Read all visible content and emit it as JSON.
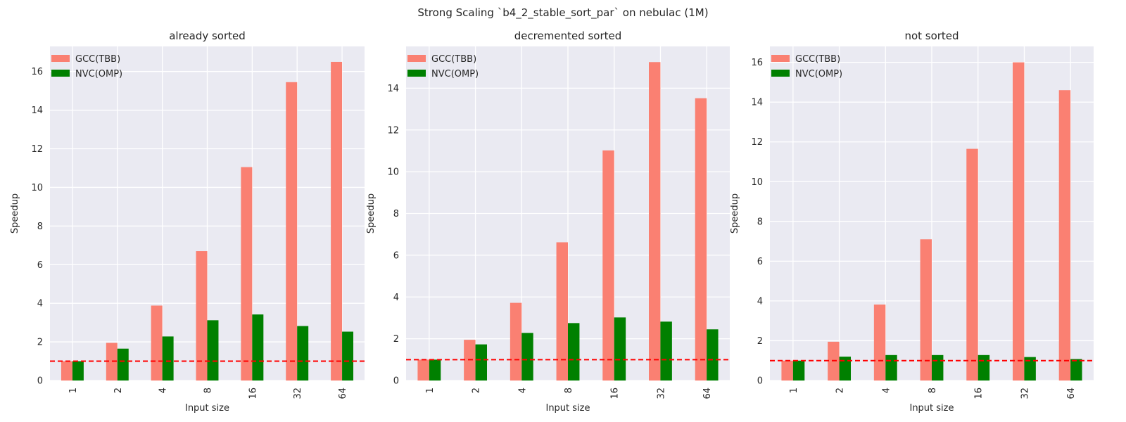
{
  "figure": {
    "suptitle": "Strong Scaling `b4_2_stable_sort_par` on nebulac (1M)"
  },
  "colors": {
    "background": "#eaeaf2",
    "grid": "#ffffff",
    "gcc": "#fa8072",
    "nvc": "#008000",
    "baseline": "#ff0000",
    "text": "#262626"
  },
  "chart_data": [
    {
      "type": "bar",
      "title": "already sorted",
      "xlabel": "Input size",
      "ylabel": "Speedup",
      "categories": [
        "1",
        "2",
        "4",
        "8",
        "16",
        "32",
        "64"
      ],
      "series": [
        {
          "name": "GCC(TBB)",
          "values": [
            1.0,
            1.95,
            3.88,
            6.7,
            11.05,
            15.45,
            16.5
          ]
        },
        {
          "name": "NVC(OMP)",
          "values": [
            1.0,
            1.65,
            2.28,
            3.12,
            3.42,
            2.82,
            2.53
          ]
        }
      ],
      "ylim": [
        0,
        17.3
      ],
      "yticks": [
        0,
        2,
        4,
        6,
        8,
        10,
        12,
        14,
        16
      ],
      "baseline": 1.0,
      "legend": "top-left",
      "grid": true
    },
    {
      "type": "bar",
      "title": "decremented sorted",
      "xlabel": "Input size",
      "ylabel": "Speedup",
      "categories": [
        "1",
        "2",
        "4",
        "8",
        "16",
        "32",
        "64"
      ],
      "series": [
        {
          "name": "GCC(TBB)",
          "values": [
            1.0,
            1.95,
            3.72,
            6.62,
            11.02,
            15.25,
            13.52
          ]
        },
        {
          "name": "NVC(OMP)",
          "values": [
            1.0,
            1.73,
            2.28,
            2.75,
            3.02,
            2.82,
            2.45
          ]
        }
      ],
      "ylim": [
        0,
        16.0
      ],
      "yticks": [
        0,
        2,
        4,
        6,
        8,
        10,
        12,
        14
      ],
      "baseline": 1.0,
      "legend": "top-left",
      "grid": true
    },
    {
      "type": "bar",
      "title": "not sorted",
      "xlabel": "Input size",
      "ylabel": "Speedup",
      "categories": [
        "1",
        "2",
        "4",
        "8",
        "16",
        "32",
        "64"
      ],
      "series": [
        {
          "name": "GCC(TBB)",
          "values": [
            1.0,
            1.95,
            3.82,
            7.1,
            11.65,
            16.0,
            14.6
          ]
        },
        {
          "name": "NVC(OMP)",
          "values": [
            1.0,
            1.2,
            1.28,
            1.28,
            1.28,
            1.18,
            1.08
          ]
        }
      ],
      "ylim": [
        0,
        16.8
      ],
      "yticks": [
        0,
        2,
        4,
        6,
        8,
        10,
        12,
        14,
        16
      ],
      "baseline": 1.0,
      "legend": "top-left",
      "grid": true
    }
  ]
}
